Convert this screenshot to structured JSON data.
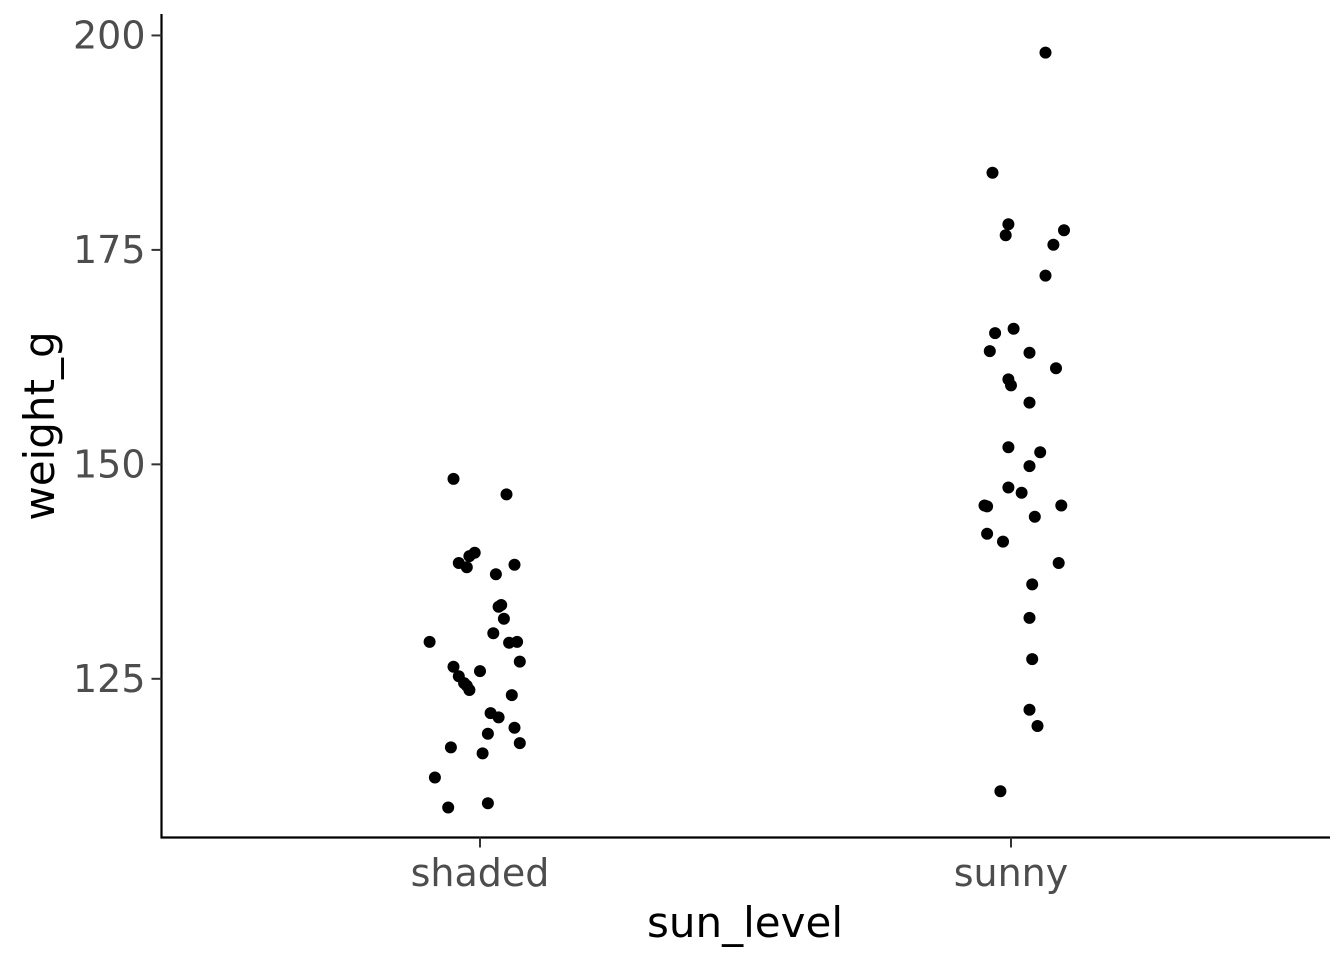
{
  "chart_data": {
    "type": "scatter",
    "subtype": "jitter strip plot",
    "title": "",
    "xlabel": "sun_level",
    "ylabel": "weight_g",
    "categories": [
      "shaded",
      "sunny"
    ],
    "ylim": [
      106.5,
      202.5
    ],
    "yticks": [
      125,
      150,
      175,
      200
    ],
    "grid": false,
    "legend": "none",
    "point_color": "#000000",
    "series": [
      {
        "category": "shaded",
        "points": [
          {
            "x": -0.1,
            "y": 148.3
          },
          {
            "x": 0.1,
            "y": 146.5
          },
          {
            "x": -0.02,
            "y": 139.7
          },
          {
            "x": -0.04,
            "y": 139.3
          },
          {
            "x": -0.08,
            "y": 138.5
          },
          {
            "x": -0.05,
            "y": 138.0
          },
          {
            "x": 0.13,
            "y": 138.3
          },
          {
            "x": 0.06,
            "y": 137.2
          },
          {
            "x": 0.08,
            "y": 133.6
          },
          {
            "x": 0.07,
            "y": 133.4
          },
          {
            "x": 0.09,
            "y": 132.0
          },
          {
            "x": 0.05,
            "y": 130.3
          },
          {
            "x": -0.19,
            "y": 129.3
          },
          {
            "x": 0.14,
            "y": 129.3
          },
          {
            "x": 0.11,
            "y": 129.2
          },
          {
            "x": 0.15,
            "y": 127.0
          },
          {
            "x": -0.1,
            "y": 126.4
          },
          {
            "x": 0.0,
            "y": 125.9
          },
          {
            "x": -0.08,
            "y": 125.3
          },
          {
            "x": -0.06,
            "y": 124.5
          },
          {
            "x": -0.05,
            "y": 124.2
          },
          {
            "x": -0.04,
            "y": 123.7
          },
          {
            "x": 0.12,
            "y": 123.1
          },
          {
            "x": 0.04,
            "y": 121.0
          },
          {
            "x": 0.07,
            "y": 120.5
          },
          {
            "x": 0.13,
            "y": 119.3
          },
          {
            "x": 0.03,
            "y": 118.6
          },
          {
            "x": 0.15,
            "y": 117.5
          },
          {
            "x": -0.11,
            "y": 117.0
          },
          {
            "x": 0.01,
            "y": 116.3
          },
          {
            "x": -0.17,
            "y": 113.5
          },
          {
            "x": 0.03,
            "y": 110.5
          },
          {
            "x": -0.12,
            "y": 110.0
          }
        ]
      },
      {
        "category": "sunny",
        "points": [
          {
            "x": 0.13,
            "y": 198.0
          },
          {
            "x": -0.07,
            "y": 184.0
          },
          {
            "x": -0.01,
            "y": 178.0
          },
          {
            "x": 0.2,
            "y": 177.3
          },
          {
            "x": -0.02,
            "y": 176.7
          },
          {
            "x": 0.16,
            "y": 175.6
          },
          {
            "x": 0.13,
            "y": 172.0
          },
          {
            "x": 0.01,
            "y": 165.8
          },
          {
            "x": -0.06,
            "y": 165.3
          },
          {
            "x": -0.08,
            "y": 163.2
          },
          {
            "x": 0.07,
            "y": 163.0
          },
          {
            "x": 0.17,
            "y": 161.2
          },
          {
            "x": -0.01,
            "y": 159.9
          },
          {
            "x": 0.0,
            "y": 159.2
          },
          {
            "x": 0.07,
            "y": 157.2
          },
          {
            "x": -0.01,
            "y": 152.0
          },
          {
            "x": 0.11,
            "y": 151.4
          },
          {
            "x": 0.07,
            "y": 149.8
          },
          {
            "x": -0.01,
            "y": 147.3
          },
          {
            "x": 0.04,
            "y": 146.7
          },
          {
            "x": -0.1,
            "y": 145.2
          },
          {
            "x": -0.09,
            "y": 145.1
          },
          {
            "x": 0.19,
            "y": 145.2
          },
          {
            "x": 0.09,
            "y": 143.9
          },
          {
            "x": -0.09,
            "y": 141.9
          },
          {
            "x": -0.03,
            "y": 141.0
          },
          {
            "x": 0.18,
            "y": 138.5
          },
          {
            "x": 0.08,
            "y": 136.0
          },
          {
            "x": 0.07,
            "y": 132.1
          },
          {
            "x": 0.08,
            "y": 127.3
          },
          {
            "x": 0.07,
            "y": 121.4
          },
          {
            "x": 0.1,
            "y": 119.5
          },
          {
            "x": -0.04,
            "y": 111.9
          }
        ]
      }
    ]
  }
}
